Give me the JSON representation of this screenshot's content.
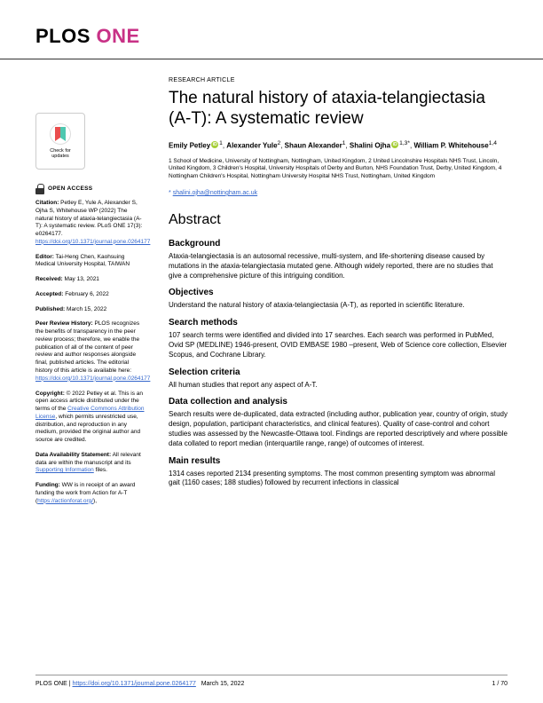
{
  "journal": {
    "logo_left": "PLOS",
    "logo_right": "ONE",
    "logo_left_color": "#000000",
    "logo_right_color": "#c83186"
  },
  "article": {
    "type": "RESEARCH ARTICLE",
    "title": "The natural history of ataxia-telangiectasia (A-T): A systematic review",
    "authors": [
      {
        "name": "Emily Petley",
        "orcid": true,
        "sup": "1"
      },
      {
        "name": "Alexander Yule",
        "sup": "2"
      },
      {
        "name": "Shaun Alexander",
        "sup": "1"
      },
      {
        "name": "Shalini Ojha",
        "orcid": true,
        "sup": "1,3",
        "corresp": true
      },
      {
        "name": "William P. Whitehouse",
        "sup": "1,4"
      }
    ],
    "affiliations": "1 School of Medicine, University of Nottingham, Nottingham, United Kingdom, 2 United Lincolnshire Hospitals NHS Trust, Lincoln, United Kingdom, 3 Children's Hospital, University Hospitals of Derby and Burton, NHS Foundation Trust, Derby, United Kingdom, 4 Nottingham Children's Hospital, Nottingham University Hospital NHS Trust, Nottingham, United Kingdom",
    "corresponding_email": "shalini.ojha@nottingham.ac.uk",
    "corresp_marker": "*"
  },
  "abstract": {
    "heading": "Abstract",
    "sections": [
      {
        "h": "Background",
        "p": "Ataxia-telangiectasia is an autosomal recessive, multi-system, and life-shortening disease caused by mutations in the ataxia-telangiectasia mutated gene. Although widely reported, there are no studies that give a comprehensive picture of this intriguing condition."
      },
      {
        "h": "Objectives",
        "p": "Understand the natural history of ataxia-telangiectasia (A-T), as reported in scientific literature."
      },
      {
        "h": "Search methods",
        "p": "107 search terms were identified and divided into 17 searches. Each search was performed in PubMed, Ovid SP (MEDLINE) 1946-present, OVID EMBASE 1980 –present, Web of Science core collection, Elsevier Scopus, and Cochrane Library."
      },
      {
        "h": "Selection criteria",
        "p": "All human studies that report any aspect of A-T."
      },
      {
        "h": "Data collection and analysis",
        "p": "Search results were de-duplicated, data extracted (including author, publication year, country of origin, study design, population, participant characteristics, and clinical features). Quality of case-control and cohort studies was assessed by the Newcastle-Ottawa tool. Findings are reported descriptively and where possible data collated to report median (interquartile range, range) of outcomes of interest."
      },
      {
        "h": "Main results",
        "p": "1314 cases reported 2134 presenting symptoms. The most common presenting symptom was abnormal gait (1160 cases; 188 studies) followed by recurrent infections in classical"
      }
    ]
  },
  "sidebar": {
    "check_updates_line1": "Check for",
    "check_updates_line2": "updates",
    "open_access": "OPEN ACCESS",
    "citation_label": "Citation:",
    "citation": "Petley E, Yule A, Alexander S, Ojha S, Whitehouse WP (2022) The natural history of ataxia-telangiectasia (A-T): A systematic review. PLoS ONE 17(3): e0264177.",
    "citation_doi": "https://doi.org/10.1371/journal.pone.0264177",
    "editor_label": "Editor:",
    "editor": "Tai-Heng Chen, Kaohsuing Medical University Hospital, TAIWAN",
    "received_label": "Received:",
    "received": "May 13, 2021",
    "accepted_label": "Accepted:",
    "accepted": "February 6, 2022",
    "published_label": "Published:",
    "published": "March 15, 2022",
    "peer_label": "Peer Review History:",
    "peer": "PLOS recognizes the benefits of transparency in the peer review process; therefore, we enable the publication of all of the content of peer review and author responses alongside final, published articles. The editorial history of this article is available here:",
    "peer_link": "https://doi.org/10.1371/journal.pone.0264177",
    "copyright_label": "Copyright:",
    "copyright_pre": "© 2022 Petley et al. This is an open access article distributed under the terms of the",
    "copyright_link": "Creative Commons Attribution License",
    "copyright_post": ", which permits unrestricted use, distribution, and reproduction in any medium, provided the original author and source are credited.",
    "data_label": "Data Availability Statement:",
    "data_pre": "All relevant data are within the manuscript and its",
    "data_link": "Supporting Information",
    "data_post": "files.",
    "funding_label": "Funding:",
    "funding_pre": "WW is in receipt of an award funding the work from Action for A-T (",
    "funding_link": "https://actionforat.org/",
    "funding_post": "),"
  },
  "footer": {
    "journal": "PLOS ONE |",
    "doi": "https://doi.org/10.1371/journal.pone.0264177",
    "date": "March 15, 2022",
    "page": "1 / 70"
  },
  "colors": {
    "link": "#3366cc",
    "orcid": "#a6ce39",
    "text": "#000000",
    "bg": "#ffffff"
  }
}
